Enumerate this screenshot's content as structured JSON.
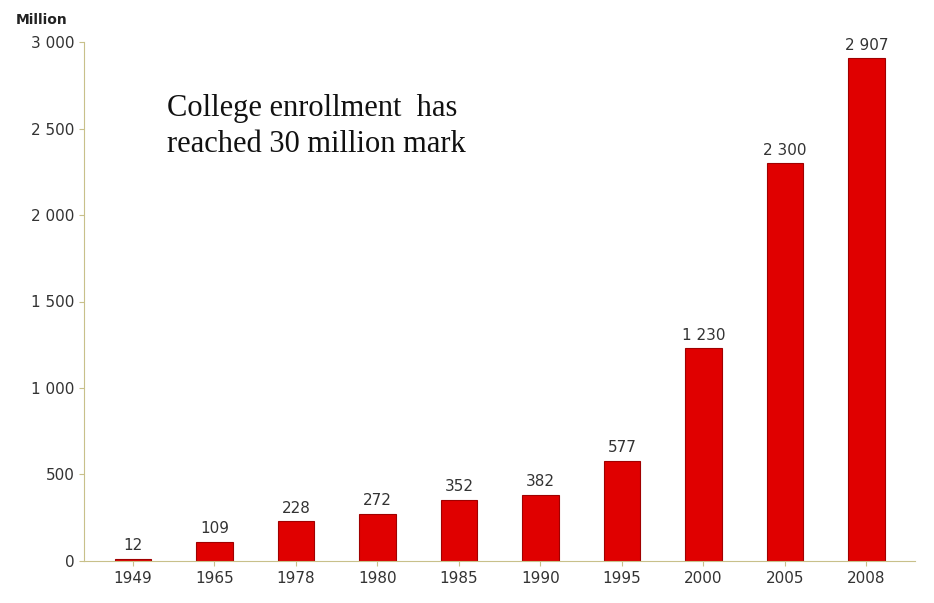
{
  "chart_data": {
    "type": "bar",
    "y_label": "Million",
    "annotation": "College enrollment  has\nreached 30 million mark",
    "categories": [
      "1949",
      "1965",
      "1978",
      "1980",
      "1985",
      "1990",
      "1995",
      "2000",
      "2005",
      "2008"
    ],
    "values": [
      12,
      109,
      228,
      272,
      352,
      382,
      577,
      1230,
      2300,
      2907
    ],
    "value_labels": [
      "12",
      "109",
      "228",
      "272",
      "352",
      "382",
      "577",
      "1 230",
      "2 300",
      "2 907"
    ],
    "data_labels": true,
    "color": "#e00000",
    "ylim": [
      0,
      3000
    ],
    "yticks": [
      0,
      500,
      {
        "value": 1000,
        "label": "1 000"
      },
      {
        "value": 1500,
        "label": "1 500"
      },
      {
        "value": 2000,
        "label": "2 000"
      },
      {
        "value": 2500,
        "label": "2 500"
      },
      {
        "value": 3000,
        "label": "3 000"
      }
    ],
    "grid": false
  }
}
